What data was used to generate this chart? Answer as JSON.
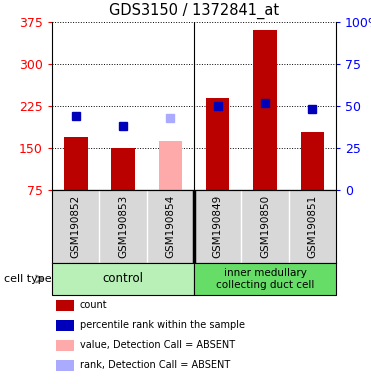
{
  "title": "GDS3150 / 1372841_at",
  "samples": [
    "GSM190852",
    "GSM190853",
    "GSM190854",
    "GSM190849",
    "GSM190850",
    "GSM190851"
  ],
  "count_values": [
    170,
    150,
    null,
    240,
    360,
    178
  ],
  "count_absent": [
    null,
    null,
    163,
    null,
    null,
    null
  ],
  "rank_values": [
    44,
    38,
    null,
    50,
    52,
    48
  ],
  "rank_absent": [
    null,
    null,
    43,
    null,
    null,
    null
  ],
  "ylim_left": [
    75,
    375
  ],
  "ylim_right": [
    0,
    100
  ],
  "yticks_left": [
    75,
    150,
    225,
    300,
    375
  ],
  "yticks_right": [
    0,
    25,
    50,
    75,
    100
  ],
  "group0_color": "#b8f0b8",
  "group1_color": "#66dd66",
  "group0_label": "control",
  "group1_label": "inner medullary\ncollecting duct cell",
  "bar_color_present": "#bb0000",
  "bar_color_absent": "#ffaaaa",
  "rank_color_present": "#0000bb",
  "rank_color_absent": "#aaaaff",
  "sample_bg": "#d8d8d8",
  "legend_items": [
    {
      "label": "count",
      "color": "#bb0000"
    },
    {
      "label": "percentile rank within the sample",
      "color": "#0000bb"
    },
    {
      "label": "value, Detection Call = ABSENT",
      "color": "#ffaaaa"
    },
    {
      "label": "rank, Detection Call = ABSENT",
      "color": "#aaaaff"
    }
  ],
  "cell_type_label": "cell type"
}
